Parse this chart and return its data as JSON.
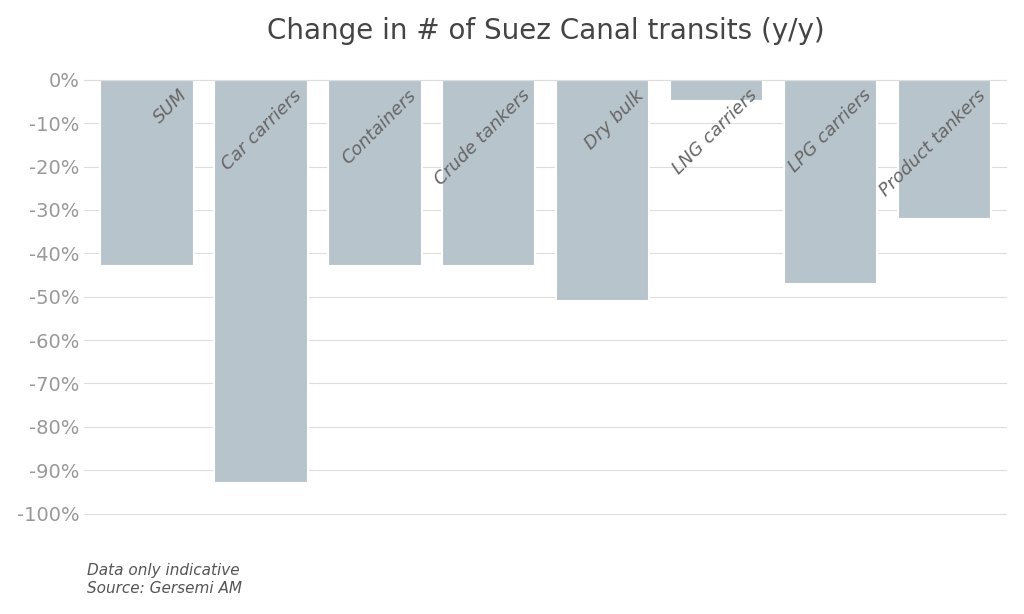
{
  "title": "Change in # of Suez Canal transits (y/y)",
  "categories": [
    "SUM",
    "Car carriers",
    "Containers",
    "Crude tankers",
    "Dry bulk",
    "LNG carriers",
    "LPG carriers",
    "Product tankers"
  ],
  "values": [
    -43,
    -93,
    -43,
    -43,
    -51,
    -5,
    -47,
    -32
  ],
  "bar_color": "#b8c4cc",
  "background_color": "#ffffff",
  "plot_bg_color": "#ffffff",
  "ylabel_ticks": [
    0,
    -10,
    -20,
    -30,
    -40,
    -50,
    -60,
    -70,
    -80,
    -90,
    -100
  ],
  "ylim": [
    -108,
    5
  ],
  "annotation_text": "Data only indicative\nSource: Gersemi AM",
  "title_fontsize": 20,
  "tick_fontsize": 14,
  "annotation_fontsize": 11,
  "label_fontsize": 13,
  "ytick_color": "#999999",
  "grid_color": "#dddddd",
  "title_color": "#444444",
  "label_color": "#666666",
  "bar_edge_color": "#ffffff"
}
